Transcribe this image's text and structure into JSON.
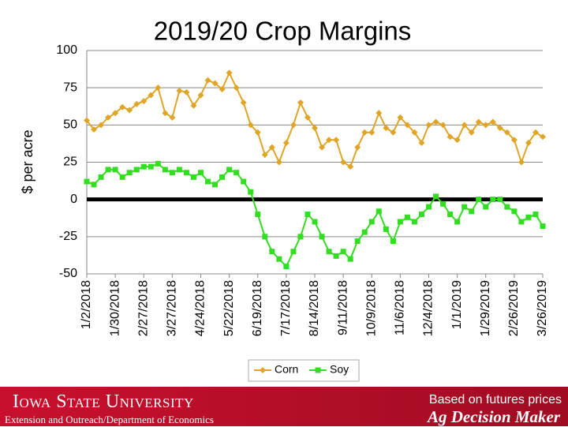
{
  "chart_data": {
    "type": "line",
    "title": "2019/20 Crop Margins",
    "ylabel": "$ per acre",
    "categories": [
      "1/2/2018",
      null,
      null,
      null,
      "1/30/2018",
      null,
      null,
      null,
      "2/27/2018",
      null,
      null,
      null,
      "3/27/2018",
      null,
      null,
      null,
      "4/24/2018",
      null,
      null,
      null,
      "5/22/2018",
      null,
      null,
      null,
      "6/19/2018",
      null,
      null,
      null,
      "7/17/2018",
      null,
      null,
      null,
      "8/14/2018",
      null,
      null,
      null,
      "9/11/2018",
      null,
      null,
      null,
      "10/9/2018",
      null,
      null,
      null,
      "11/6/2018",
      null,
      null,
      null,
      "12/4/2018",
      null,
      null,
      null,
      "1/1/2019",
      null,
      null,
      null,
      "1/29/2019",
      null,
      null,
      null,
      "2/26/2019",
      null,
      null,
      null,
      "3/26/2019"
    ],
    "series": [
      {
        "name": "Corn",
        "color": "#e0a526",
        "marker": "diamond",
        "values": [
          53,
          47,
          50,
          55,
          58,
          62,
          60,
          64,
          66,
          70,
          75,
          58,
          55,
          73,
          72,
          63,
          70,
          80,
          78,
          74,
          85,
          75,
          65,
          50,
          45,
          30,
          35,
          25,
          38,
          50,
          65,
          55,
          48,
          35,
          40,
          40,
          25,
          22,
          35,
          45,
          45,
          58,
          48,
          45,
          55,
          50,
          45,
          38,
          50,
          52,
          50,
          42,
          40,
          50,
          45,
          52,
          50,
          52,
          48,
          45,
          40,
          25,
          38,
          45,
          42
        ]
      },
      {
        "name": "Soy",
        "color": "#33dd22",
        "marker": "square",
        "values": [
          12,
          10,
          15,
          20,
          20,
          15,
          18,
          20,
          22,
          22,
          24,
          20,
          18,
          20,
          18,
          15,
          18,
          12,
          10,
          15,
          20,
          18,
          12,
          5,
          -10,
          -25,
          -35,
          -40,
          -45,
          -35,
          -25,
          -10,
          -15,
          -25,
          -35,
          -38,
          -35,
          -40,
          -28,
          -22,
          -15,
          -8,
          -20,
          -28,
          -15,
          -12,
          -15,
          -10,
          -5,
          2,
          -3,
          -10,
          -15,
          -5,
          -8,
          0,
          -5,
          0,
          0,
          -5,
          -8,
          -15,
          -12,
          -10,
          -18
        ]
      }
    ],
    "ylim": [
      -50,
      100
    ],
    "yticks": [
      -50,
      -25,
      0,
      25,
      50,
      75,
      100
    ],
    "grid": true,
    "legend": "bottom"
  },
  "footer": {
    "university": "Iowa State University",
    "unit": "Extension and Outreach/Department of Economics",
    "note": "Based on futures prices",
    "brand": "Ag Decision Maker"
  }
}
